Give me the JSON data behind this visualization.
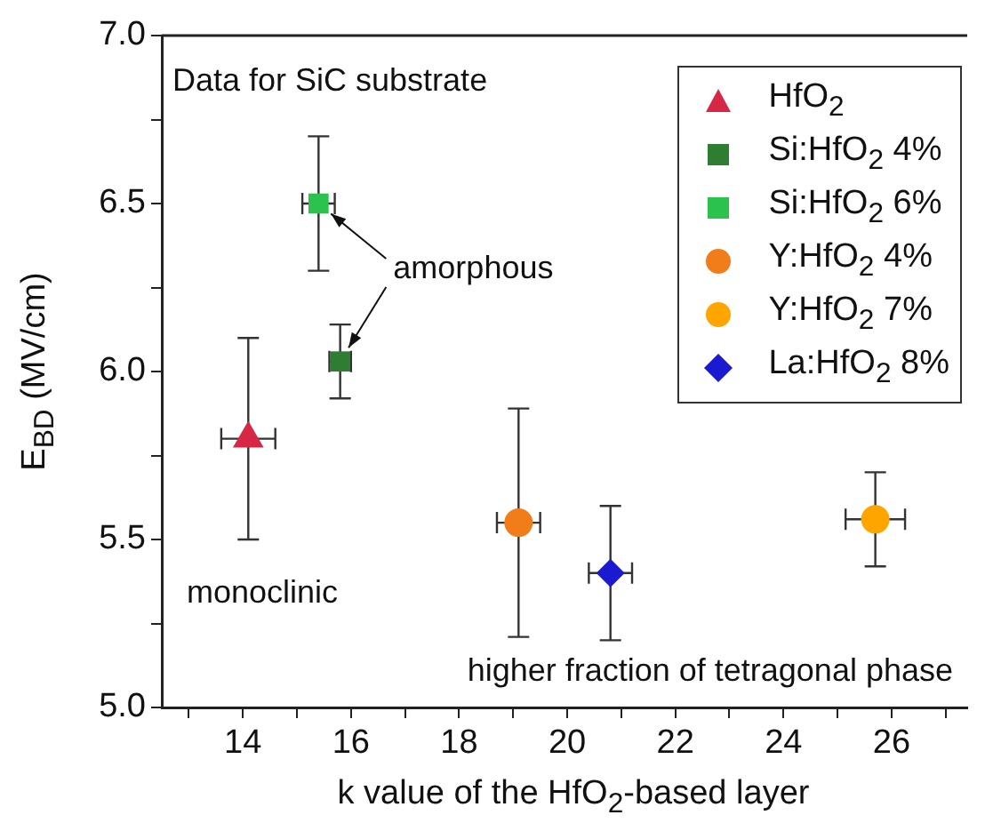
{
  "chart_data": {
    "type": "scatter",
    "xlabel": "k value of the HfO$_{2}$-based layer",
    "ylabel": "E$_{BD}$ (MV/cm)",
    "xlim": [
      12.5,
      27.4
    ],
    "xticks": [
      {
        "value": 13,
        "label": null
      },
      14,
      {
        "value": 15,
        "label": null
      },
      16,
      {
        "value": 17,
        "label": null
      },
      18,
      {
        "value": 19,
        "label": null
      },
      20,
      {
        "value": 21,
        "label": null
      },
      22,
      {
        "value": 23,
        "label": null
      },
      24,
      {
        "value": 25,
        "label": null
      },
      26,
      {
        "value": 27,
        "label": null
      }
    ],
    "ylim": [
      5.0,
      7.0
    ],
    "yticks": [
      {
        "value": 5,
        "label": "5.0"
      },
      {
        "value": 5.25,
        "label": null
      },
      {
        "value": 5.5,
        "label": "5.5"
      },
      {
        "value": 5.75,
        "label": null
      },
      {
        "value": 6,
        "label": "6.0"
      },
      {
        "value": 6.25,
        "label": null
      },
      {
        "value": 6.5,
        "label": "6.5"
      },
      {
        "value": 6.75,
        "label": null
      },
      {
        "value": 7,
        "label": "7.0"
      }
    ],
    "grid": false,
    "legend": "top right",
    "series": [
      {
        "name": "HfO$_{2}$",
        "color": "#d62747",
        "marker": "triangle",
        "x": [
          14.1
        ],
        "values": [
          5.8
        ],
        "errors": [
          [
            5.5,
            6.1
          ]
        ],
        "xerrors": [
          0.5
        ]
      },
      {
        "name": "Si:HfO$_{2}$ 4%",
        "color": "#2e7d32",
        "marker": "square",
        "x": [
          15.8
        ],
        "values": [
          6.03
        ],
        "errors": [
          [
            5.92,
            6.14
          ]
        ],
        "xerrors": [
          0.2
        ]
      },
      {
        "name": "Si:HfO$_{2}$ 6%",
        "color": "#2cc24e",
        "marker": "square",
        "x": [
          15.4
        ],
        "values": [
          6.5
        ],
        "errors": [
          [
            6.3,
            6.7
          ]
        ],
        "xerrors": [
          0.3
        ]
      },
      {
        "name": "Y:HfO$_{2}$ 4%",
        "color": "#f07d1a",
        "marker": "circle",
        "x": [
          19.1
        ],
        "values": [
          5.55
        ],
        "errors": [
          [
            5.21,
            5.89
          ]
        ],
        "xerrors": [
          0.4
        ]
      },
      {
        "name": "Y:HfO$_{2}$ 7%",
        "color": "#ffa500",
        "marker": "circle",
        "x": [
          25.7
        ],
        "values": [
          5.56
        ],
        "errors": [
          [
            5.42,
            5.7
          ]
        ],
        "xerrors": [
          0.55
        ]
      },
      {
        "name": "La:HfO$_{2}$ 8%",
        "color": "#1a1ad0",
        "marker": "diamond",
        "x": [
          20.8
        ],
        "values": [
          5.4
        ],
        "errors": [
          [
            5.2,
            5.6
          ]
        ],
        "xerrors": [
          0.4
        ]
      }
    ],
    "annotations": [
      "Data for SiC substrate",
      "monoclinic",
      "higher fraction of tetragonal phase",
      {
        "text": "amorphous",
        "x": 15.4,
        "y": 6.5
      }
    ]
  }
}
